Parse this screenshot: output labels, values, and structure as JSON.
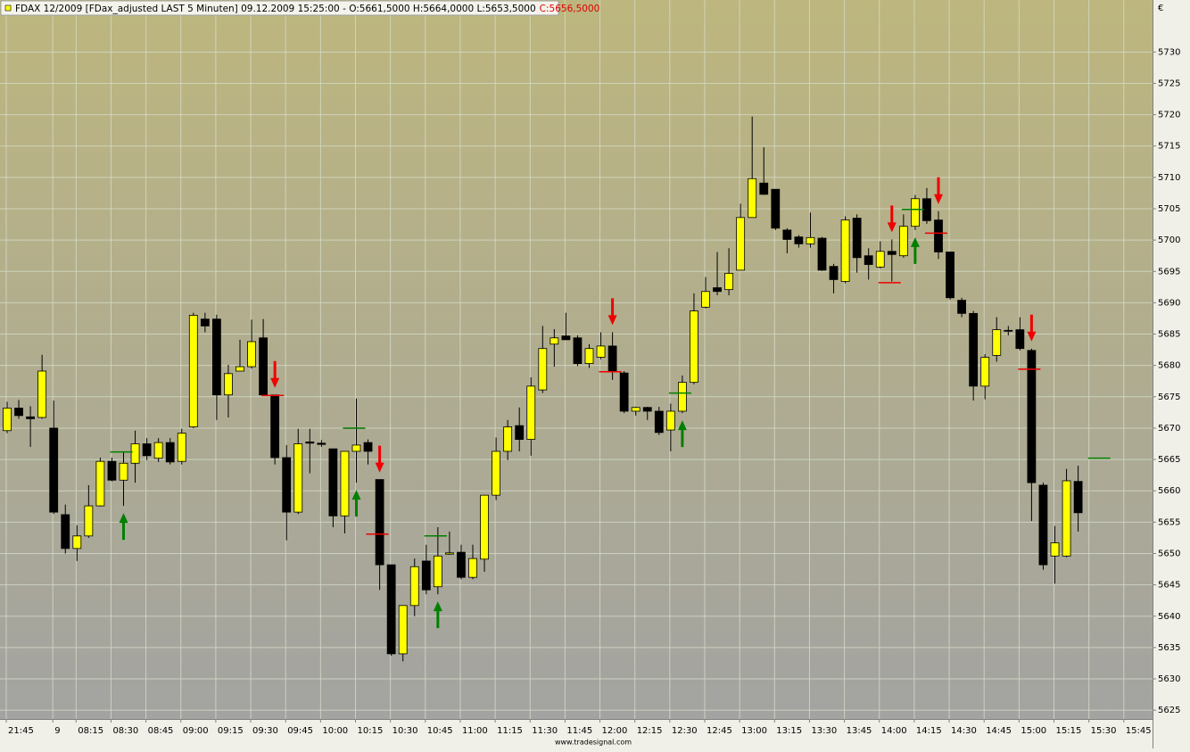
{
  "chart_data": {
    "type": "candlestick",
    "title": "FDAX 12/2009 [FDax_adjusted LAST 5 Minuten] 09.12.2009 15:25:00 - O:5661,5000 H:5664,0000 L:5653,5000",
    "close_label": "C:5656,5000",
    "currency": "€",
    "footer": "www.tradesignal.com",
    "up_color": "#ffff00",
    "down_color": "#000000",
    "buy_color": "#008000",
    "sell_color": "#ee0000",
    "grid": true,
    "ylim": [
      5623.6,
      5738.3
    ],
    "yticks": [
      5625,
      5630,
      5635,
      5640,
      5645,
      5650,
      5655,
      5660,
      5665,
      5670,
      5675,
      5680,
      5685,
      5690,
      5695,
      5700,
      5705,
      5710,
      5715,
      5720,
      5725,
      5730
    ],
    "categories": [
      "21:45",
      null,
      null,
      null,
      "9",
      null,
      "08:15",
      null,
      null,
      "08:30",
      null,
      null,
      "08:45",
      null,
      null,
      "09:00",
      null,
      null,
      "09:15",
      null,
      null,
      "09:30",
      null,
      null,
      "09:45",
      null,
      null,
      "10:00",
      null,
      null,
      "10:15",
      null,
      null,
      "10:30",
      null,
      null,
      "10:45",
      null,
      null,
      "11:00",
      null,
      null,
      "11:15",
      null,
      null,
      "11:30",
      null,
      null,
      "11:45",
      null,
      null,
      "12:00",
      null,
      null,
      "12:15",
      null,
      null,
      "12:30",
      null,
      null,
      "12:45",
      null,
      null,
      "13:00",
      null,
      null,
      "13:15",
      null,
      null,
      "13:30",
      null,
      null,
      "13:45",
      null,
      null,
      "14:00",
      null,
      null,
      "14:15",
      null,
      null,
      "14:30",
      null,
      null,
      "14:45",
      null,
      null,
      "15:00",
      null,
      null,
      "15:15",
      null,
      null,
      "15:30",
      null,
      null,
      "15:45",
      null
    ],
    "open": [
      5669.6,
      5673.2,
      5671.8,
      5671.7,
      5670,
      5656.2,
      5650.8,
      5652.8,
      5657.6,
      5664.7,
      5661.7,
      5664.4,
      5667.5,
      5665.2,
      5667.7,
      5664.7,
      5670.2,
      5687.4,
      5687.4,
      5675.3,
      5679.1,
      5679.8,
      5684.4,
      5675.3,
      5665.3,
      5656.6,
      5667.8,
      5667.6,
      5666.7,
      5656,
      5666.3,
      5667.7,
      5661.8,
      5648.2,
      5634,
      5641.7,
      5648.8,
      5644.7,
      5649.9,
      5650.2,
      5646.2,
      5649.1,
      5659.3,
      5666.3,
      5670.4,
      5668.2,
      5676.1,
      5683.4,
      5684.7,
      5684.4,
      5680.3,
      5681.3,
      5683.1,
      5678.8,
      5672.7,
      5673.3,
      5672.7,
      5669.7,
      5672.7,
      5677.3,
      5689.3,
      5692.4,
      5692.1,
      5695.2,
      5703.6,
      5709.1,
      5708.1,
      5701.6,
      5700.5,
      5699.4,
      5700.3,
      5695.8,
      5693.4,
      5703.5,
      5697.5,
      5695.7,
      5698.2,
      5697.5,
      5702.2,
      5706.6,
      5703.2,
      5698.1,
      5690.4,
      5688.3,
      5676.7,
      5681.6,
      5685.6,
      5685.7,
      5682.4,
      5660.9,
      5649.6,
      5649.6,
      5661.5,
      null,
      null,
      null,
      null,
      null
    ],
    "high": [
      5674.2,
      5674.5,
      5673.5,
      5681.7,
      5674.4,
      5657.8,
      5654.5,
      5660.9,
      5665.3,
      5665.3,
      5666.2,
      5669.6,
      5668.4,
      5668.4,
      5668.4,
      5669.9,
      5688.4,
      5688.4,
      5688.1,
      5680.1,
      5684.1,
      5687.3,
      5687.4,
      5675.3,
      5667.3,
      5669.9,
      5669.9,
      5668.1,
      5666.7,
      5666.3,
      5674.7,
      5668.2,
      5661.8,
      5648.2,
      5641.7,
      5649.2,
      5651.4,
      5654.2,
      5653.5,
      5651.4,
      5651.4,
      5659.3,
      5668.5,
      5671.3,
      5673.3,
      5678.1,
      5686.3,
      5685.8,
      5688.4,
      5684.8,
      5683.4,
      5685.3,
      5685.3,
      5679.1,
      5673.4,
      5673.4,
      5673.4,
      5673.9,
      5678.4,
      5691.5,
      5694.1,
      5698.1,
      5698.7,
      5705.8,
      5719.7,
      5714.8,
      5708.1,
      5701.9,
      5700.8,
      5704.4,
      5700.5,
      5696.2,
      5703.8,
      5704.1,
      5698.7,
      5699.8,
      5700.1,
      5704.1,
      5707.2,
      5708.3,
      5704.6,
      5698.1,
      5690.8,
      5688.7,
      5681.8,
      5687.7,
      5686.3,
      5687.7,
      5682.7,
      5661.3,
      5654.4,
      5663.5,
      5664,
      null,
      null,
      null,
      null,
      null
    ],
    "low": [
      5669.2,
      5671.5,
      5667,
      5671.5,
      5656.3,
      5650,
      5648.8,
      5652.5,
      5657.5,
      5661.5,
      5657.6,
      5661.3,
      5664.9,
      5664.6,
      5664.2,
      5664.2,
      5670,
      5685.3,
      5671.3,
      5671.7,
      5679.1,
      5679.5,
      5675.3,
      5664.2,
      5652.1,
      5656.3,
      5662.8,
      5667,
      5654.2,
      5653.2,
      5661.3,
      5664.2,
      5644.2,
      5633.7,
      5632.8,
      5640,
      5643.5,
      5643.5,
      5649.8,
      5645.9,
      5645.9,
      5647.1,
      5658.5,
      5664.9,
      5666.3,
      5665.6,
      5675.6,
      5679.8,
      5684.1,
      5679.9,
      5679.6,
      5681,
      5677.7,
      5672.4,
      5672,
      5671.3,
      5668.9,
      5666.3,
      5672.4,
      5677,
      5689.1,
      5691.2,
      5691.2,
      5695.2,
      5703.6,
      5707.2,
      5701.6,
      5697.9,
      5698.8,
      5698.8,
      5695.1,
      5691.5,
      5693.1,
      5694.8,
      5693.7,
      5695.5,
      5693.4,
      5697.2,
      5701.6,
      5702.6,
      5697,
      5690.5,
      5687.7,
      5674.4,
      5674.6,
      5680.6,
      5684.8,
      5682.4,
      5655.2,
      5647.4,
      5645.2,
      5649.4,
      5653.5,
      null,
      null,
      null,
      null,
      null
    ],
    "close": [
      5673.2,
      5672,
      5671.5,
      5679.1,
      5656.6,
      5650.8,
      5652.8,
      5657.6,
      5664.7,
      5661.7,
      5664.4,
      5667.5,
      5665.6,
      5667.7,
      5664.6,
      5669.2,
      5688,
      5686.3,
      5675.3,
      5678.7,
      5679.8,
      5683.8,
      5675.3,
      5665.3,
      5656.6,
      5667.5,
      5667.6,
      5667.4,
      5656,
      5666.3,
      5667.3,
      5666.3,
      5648.2,
      5634,
      5641.7,
      5647.9,
      5644.2,
      5649.6,
      5650.1,
      5646.2,
      5649.2,
      5659.3,
      5666.3,
      5670.2,
      5668.2,
      5676.7,
      5682.7,
      5684.4,
      5684.1,
      5680.3,
      5682.7,
      5683.1,
      5679.1,
      5672.7,
      5673.3,
      5672.7,
      5669.3,
      5672.7,
      5677.3,
      5688.7,
      5691.8,
      5691.8,
      5694.7,
      5703.6,
      5709.8,
      5707.3,
      5701.9,
      5700.1,
      5699.4,
      5700.4,
      5695.2,
      5693.7,
      5703.2,
      5697.2,
      5696.1,
      5698.2,
      5697.7,
      5702.2,
      5706.6,
      5703.1,
      5698.1,
      5690.8,
      5688.3,
      5676.7,
      5681.3,
      5685.7,
      5685.5,
      5682.7,
      5661.3,
      5648.2,
      5651.7,
      5661.6,
      5656.5,
      null,
      null,
      null,
      null,
      null
    ],
    "buy_levels": [
      null,
      null,
      null,
      null,
      null,
      null,
      null,
      null,
      null,
      null,
      5666.2,
      null,
      null,
      null,
      null,
      null,
      null,
      null,
      null,
      null,
      null,
      null,
      null,
      null,
      null,
      null,
      null,
      null,
      null,
      null,
      5670,
      null,
      null,
      null,
      null,
      null,
      null,
      5652.8,
      null,
      null,
      null,
      null,
      null,
      null,
      null,
      null,
      null,
      null,
      null,
      null,
      null,
      null,
      null,
      null,
      null,
      null,
      null,
      null,
      5675.6,
      null,
      null,
      null,
      null,
      null,
      null,
      null,
      null,
      null,
      null,
      null,
      null,
      null,
      null,
      null,
      null,
      null,
      null,
      null,
      5704.9,
      null,
      null,
      null,
      null,
      null,
      null,
      null,
      null,
      null,
      null,
      null,
      null,
      null,
      null,
      null,
      5665.2,
      null,
      null,
      null
    ],
    "sell_levels": [
      null,
      null,
      null,
      null,
      null,
      null,
      null,
      null,
      null,
      null,
      null,
      null,
      null,
      null,
      null,
      null,
      null,
      null,
      null,
      null,
      null,
      null,
      null,
      5675.2,
      null,
      null,
      null,
      null,
      null,
      null,
      null,
      null,
      5653.1,
      null,
      null,
      null,
      null,
      null,
      null,
      null,
      null,
      null,
      null,
      null,
      null,
      null,
      null,
      null,
      null,
      null,
      null,
      null,
      5679,
      null,
      null,
      null,
      null,
      null,
      null,
      null,
      null,
      null,
      null,
      null,
      null,
      null,
      null,
      null,
      null,
      null,
      null,
      null,
      null,
      null,
      null,
      null,
      5693.2,
      null,
      null,
      null,
      5701.1,
      null,
      null,
      null,
      null,
      null,
      null,
      null,
      5679.4,
      null,
      null,
      null,
      null,
      null,
      null,
      null,
      null,
      null
    ]
  }
}
